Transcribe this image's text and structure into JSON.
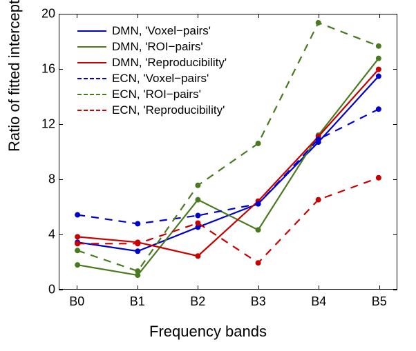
{
  "chart": {
    "type": "line",
    "title": "",
    "xlabel": "Frequency bands",
    "ylabel": "Ratio of fitted intercepts over slopes",
    "label_fontsize": 22,
    "tick_fontsize": 18,
    "legend_fontsize": 17,
    "legend_position": "upper-left-inside",
    "xlim": [
      -0.3,
      5.3
    ],
    "ylim": [
      0,
      20
    ],
    "yticks": [
      0,
      4,
      8,
      12,
      16,
      20
    ],
    "xtick_labels": [
      "B0",
      "B1",
      "B2",
      "B3",
      "B4",
      "B5"
    ],
    "xtick_positions": [
      0,
      1,
      2,
      3,
      4,
      5
    ],
    "background_color": "#ffffff",
    "axis_color": "#000000",
    "line_width": 2.2,
    "marker_size": 4,
    "series": [
      {
        "name": "DMN, 'Voxel−pairs'",
        "color": "#0000cd",
        "dash": "solid",
        "x": [
          0,
          1,
          2,
          3,
          4,
          5
        ],
        "y": [
          3.4,
          2.75,
          4.5,
          6.2,
          10.7,
          15.5
        ]
      },
      {
        "name": "DMN, 'ROI−pairs'",
        "color": "#4a7a1f",
        "dash": "solid",
        "x": [
          0,
          1,
          2,
          3,
          4,
          5
        ],
        "y": [
          1.75,
          1.0,
          6.5,
          4.3,
          11.2,
          16.8
        ]
      },
      {
        "name": "DMN, 'Reproducibility'",
        "color": "#c80000",
        "dash": "solid",
        "x": [
          0,
          1,
          2,
          3,
          4,
          5
        ],
        "y": [
          3.8,
          3.4,
          2.4,
          6.4,
          11.1,
          16.0
        ]
      },
      {
        "name": "ECN, 'Voxel−pairs'",
        "color": "#0000cd",
        "dash": "dashed",
        "x": [
          0,
          1,
          2,
          3,
          4,
          5
        ],
        "y": [
          5.4,
          4.75,
          5.35,
          6.2,
          10.9,
          13.1
        ]
      },
      {
        "name": "ECN, 'ROI−pairs'",
        "color": "#4a7a1f",
        "dash": "dashed",
        "x": [
          0,
          1,
          2,
          3,
          4,
          5
        ],
        "y": [
          2.8,
          1.3,
          7.55,
          10.6,
          19.4,
          17.7
        ]
      },
      {
        "name": "ECN, 'Reproducibility'",
        "color": "#c80000",
        "dash": "dashed",
        "x": [
          0,
          1,
          2,
          3,
          4,
          5
        ],
        "y": [
          3.3,
          3.3,
          4.8,
          1.9,
          6.5,
          8.1
        ]
      }
    ]
  }
}
